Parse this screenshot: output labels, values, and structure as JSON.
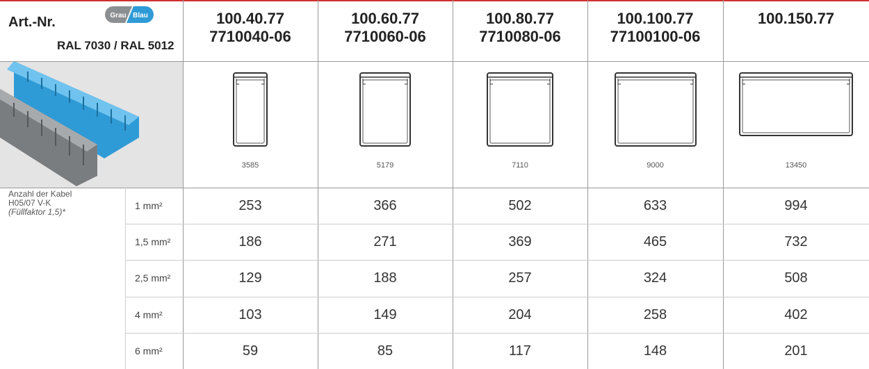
{
  "header": {
    "art_nr": "Art.-Nr.",
    "badge_gray": "Grau",
    "badge_blue": "Blau",
    "ral": "RAL 7030 / RAL 5012"
  },
  "columns": [
    {
      "code": "100.40.77",
      "code2": "7710040-06",
      "image_number": "3585"
    },
    {
      "code": "100.60.77",
      "code2": "7710060-06",
      "image_number": "5179"
    },
    {
      "code": "100.80.77",
      "code2": "7710080-06",
      "image_number": "7110"
    },
    {
      "code": "100.100.77",
      "code2": "77100100-06",
      "image_number": "9000"
    },
    {
      "code": "100.150.77",
      "image_number": "13450"
    }
  ],
  "row_label": {
    "line1": "Anzahl der Kabel",
    "line2": "H05/07 V-K",
    "line3": "(Füllfaktor 1,5)*"
  },
  "rows": [
    {
      "size": "1 mm²",
      "values": [
        253,
        366,
        502,
        633,
        994
      ]
    },
    {
      "size": "1,5 mm²",
      "values": [
        186,
        271,
        369,
        465,
        732
      ]
    },
    {
      "size": "2,5 mm²",
      "values": [
        129,
        188,
        257,
        324,
        508
      ]
    },
    {
      "size": "4 mm²",
      "values": [
        103,
        149,
        204,
        258,
        402
      ]
    },
    {
      "size": "6 mm²",
      "values": [
        59,
        85,
        117,
        148,
        201
      ]
    }
  ]
}
